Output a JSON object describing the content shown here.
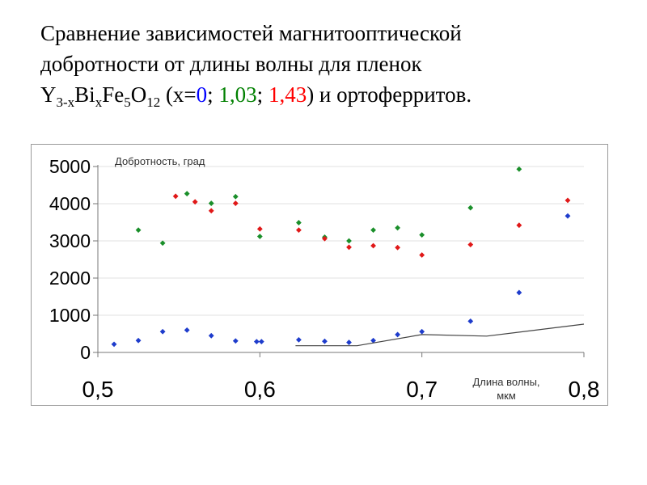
{
  "title": {
    "line1": "Сравнение зависимостей магнитооптической",
    "line2": "добротности от длины волны для пленок",
    "formula": {
      "y": "Y",
      "y_sub": "3-x",
      "bi": "Bi",
      "bi_sub": "x",
      "fe": "Fe",
      "fe_sub": "5",
      "o": "O",
      "o_sub": "12"
    },
    "paren_open": " (x=",
    "x0": "0",
    "sep1": "; ",
    "x1": "1,03",
    "sep2": "; ",
    "x2": "1,43",
    "tail": ") и ортоферритов."
  },
  "chart_data": {
    "type": "scatter",
    "ylabel": "Добротность, град",
    "xlabel_line1": "Длина волны,",
    "xlabel_line2": "мкм",
    "xlim": [
      0.5,
      0.8
    ],
    "ylim": [
      0,
      5000
    ],
    "xticks": [
      0.5,
      0.6,
      0.7,
      0.8
    ],
    "xtick_labels": [
      "0,5",
      "0,6",
      "0,7",
      "0,8"
    ],
    "yticks": [
      0,
      1000,
      2000,
      3000,
      4000,
      5000
    ],
    "ytick_labels": [
      "0",
      "1000",
      "2000",
      "3000",
      "4000",
      "5000"
    ],
    "grid": "horizontal",
    "series": [
      {
        "color": "#1e3ccc",
        "points": [
          [
            0.51,
            220
          ],
          [
            0.525,
            320
          ],
          [
            0.54,
            560
          ],
          [
            0.555,
            600
          ],
          [
            0.57,
            450
          ],
          [
            0.585,
            310
          ],
          [
            0.598,
            290
          ],
          [
            0.601,
            290
          ],
          [
            0.624,
            340
          ],
          [
            0.64,
            300
          ],
          [
            0.655,
            270
          ],
          [
            0.67,
            320
          ],
          [
            0.685,
            480
          ],
          [
            0.7,
            560
          ],
          [
            0.73,
            840
          ],
          [
            0.76,
            1610
          ],
          [
            0.79,
            3670
          ]
        ]
      },
      {
        "color": "#1a8f2a",
        "points": [
          [
            0.525,
            3290
          ],
          [
            0.54,
            2940
          ],
          [
            0.555,
            4270
          ],
          [
            0.57,
            4010
          ],
          [
            0.585,
            4190
          ],
          [
            0.6,
            3120
          ],
          [
            0.624,
            3490
          ],
          [
            0.64,
            3100
          ],
          [
            0.655,
            3000
          ],
          [
            0.67,
            3290
          ],
          [
            0.685,
            3350
          ],
          [
            0.7,
            3160
          ],
          [
            0.73,
            3890
          ],
          [
            0.76,
            4930
          ]
        ]
      },
      {
        "color": "#e01818",
        "points": [
          [
            0.548,
            4200
          ],
          [
            0.56,
            4050
          ],
          [
            0.57,
            3810
          ],
          [
            0.585,
            4010
          ],
          [
            0.6,
            3320
          ],
          [
            0.624,
            3290
          ],
          [
            0.64,
            3060
          ],
          [
            0.655,
            2830
          ],
          [
            0.67,
            2870
          ],
          [
            0.685,
            2820
          ],
          [
            0.7,
            2620
          ],
          [
            0.73,
            2900
          ],
          [
            0.76,
            3420
          ],
          [
            0.79,
            4090
          ]
        ]
      },
      {
        "type": "line",
        "color": "#444444",
        "points": [
          [
            0.622,
            180
          ],
          [
            0.66,
            180
          ],
          [
            0.7,
            480
          ],
          [
            0.74,
            440
          ],
          [
            0.8,
            760
          ]
        ]
      }
    ]
  }
}
